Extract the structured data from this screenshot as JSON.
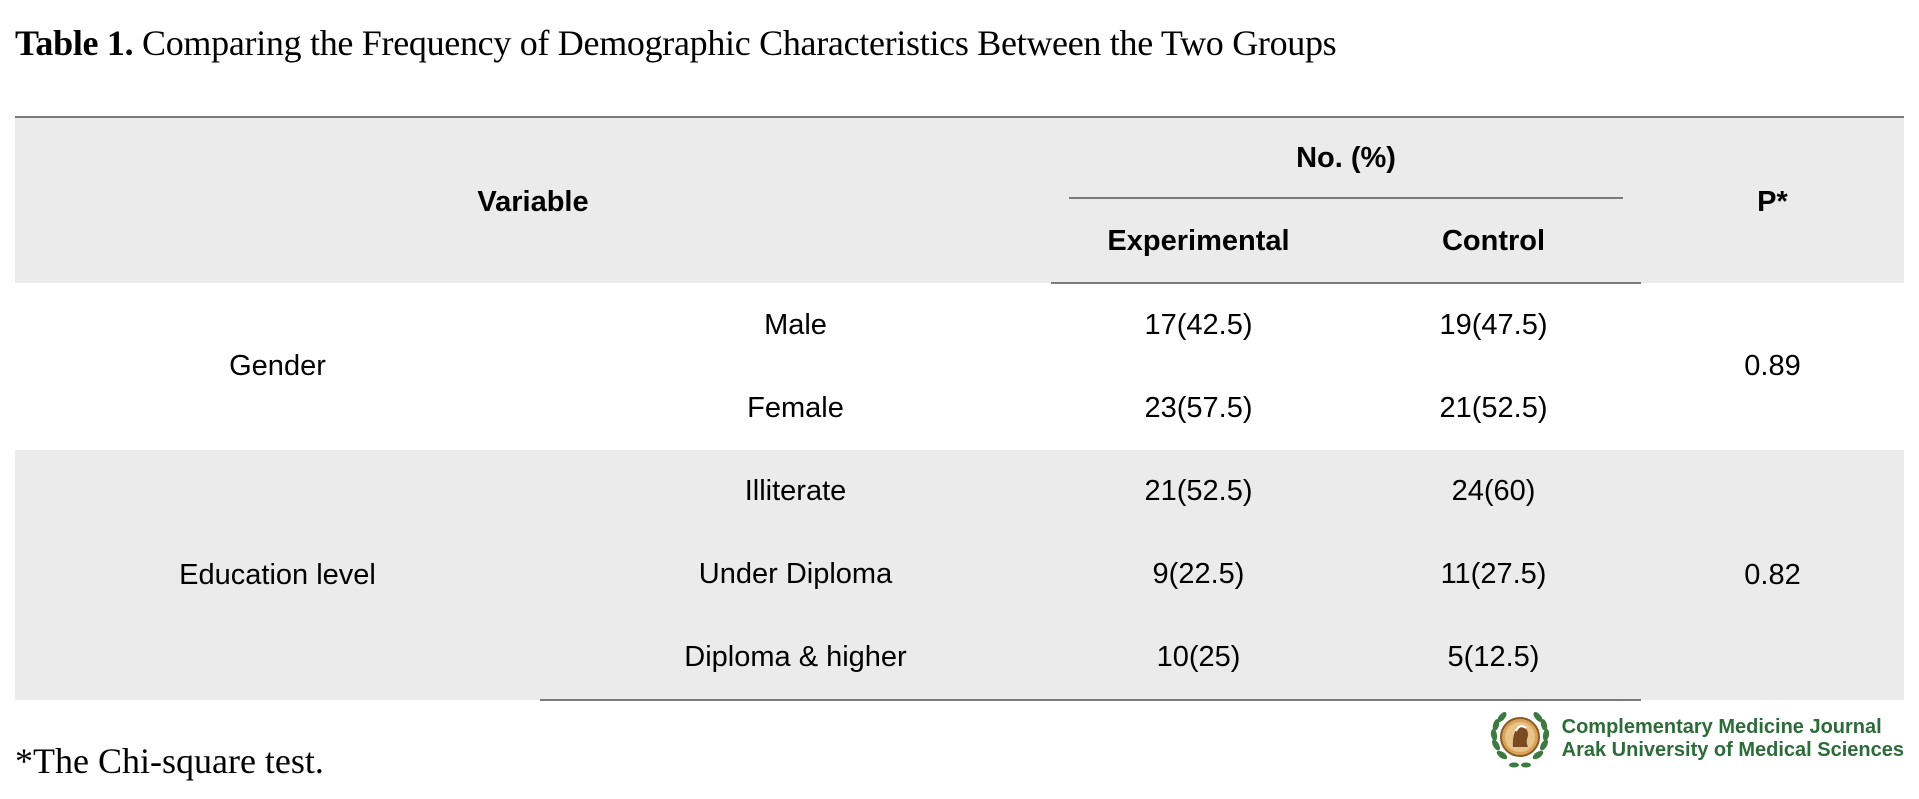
{
  "caption": {
    "label": "Table 1.",
    "text": "Comparing the Frequency of Demographic Characteristics Between the Two Groups"
  },
  "table": {
    "header": {
      "variable": "Variable",
      "group_header": "No. (%)",
      "experimental": "Experimental",
      "control": "Control",
      "p": "P*"
    },
    "gender": {
      "label": "Gender",
      "p": "0.89",
      "rows": [
        {
          "category": "Male",
          "experimental": "17(42.5)",
          "control": "19(47.5)"
        },
        {
          "category": "Female",
          "experimental": "23(57.5)",
          "control": "21(52.5)"
        }
      ]
    },
    "education": {
      "label": "Education level",
      "p": "0.82",
      "rows": [
        {
          "category": "Illiterate",
          "experimental": "21(52.5)",
          "control": "24(60)"
        },
        {
          "category": "Under Diploma",
          "experimental": "9(22.5)",
          "control": "11(27.5)"
        },
        {
          "category": "Diploma & higher",
          "experimental": "10(25)",
          "control": "5(12.5)"
        }
      ]
    }
  },
  "footnote": "*The Chi-square test.",
  "logo": {
    "line1": "Complementary Medicine Journal",
    "line2": "Arak University of Medical Sciences",
    "color": "#2e6b3a"
  }
}
